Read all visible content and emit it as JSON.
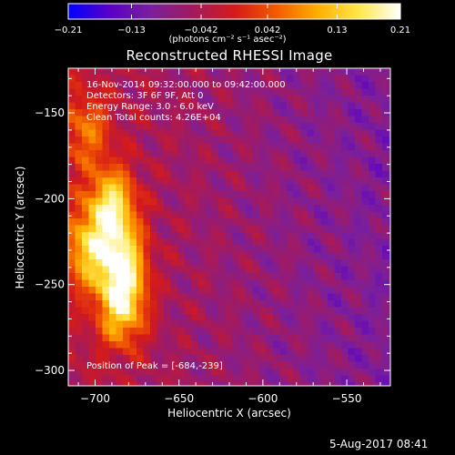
{
  "colorbar": {
    "ticks": [
      "-0.21",
      "-0.13",
      "-0.042",
      "0.042",
      "0.13",
      "0.21"
    ],
    "tick_values": [
      -0.21,
      -0.13,
      -0.042,
      0.042,
      0.13,
      0.21
    ],
    "range": [
      -0.21,
      0.21
    ],
    "unit_label": "(photons cm⁻² s⁻¹ asec⁻²)",
    "colormap": [
      "#0000ff",
      "#5a00c8",
      "#7a1f9c",
      "#a31a5e",
      "#d41a1a",
      "#f25a00",
      "#ffae00",
      "#ffe84a",
      "#ffffff"
    ]
  },
  "chart_data": {
    "type": "heatmap",
    "title": "Reconstructed RHESSI Image",
    "xlabel": "Heliocentric X (arcsec)",
    "ylabel": "Heliocentric Y (arcsec)",
    "xlim": [
      -716,
      -524
    ],
    "ylim": [
      -309,
      -124
    ],
    "xticks": [
      -700,
      -650,
      -600,
      -550
    ],
    "xtick_labels": [
      "−700",
      "−650",
      "−600",
      "−550"
    ],
    "yticks": [
      -150,
      -200,
      -250,
      -300
    ],
    "ytick_labels": [
      "−150",
      "−200",
      "−250",
      "−300"
    ],
    "info_lines": {
      "date": "16-Nov-2014 09:32:00.000 to 09:42:00.000",
      "detectors": "Detectors: 3F 6F 9F, Att 0",
      "energy": "Energy Range: 3.0 - 6.0 keV",
      "clean": "Clean    Total counts: 4.26E+04"
    },
    "peak_label": "Position of Peak = [-684,-239]",
    "peak_position": [
      -684,
      -239
    ],
    "sources": [
      {
        "x": -690,
        "y": -205,
        "intensity": 0.21
      },
      {
        "x": -684,
        "y": -239,
        "intensity": 0.21
      },
      {
        "x": -684,
        "y": -265,
        "intensity": 0.17
      },
      {
        "x": -705,
        "y": -230,
        "intensity": 0.15
      },
      {
        "x": -705,
        "y": -160,
        "intensity": 0.1
      }
    ]
  },
  "footer": {
    "timestamp": "5-Aug-2017 08:41"
  }
}
